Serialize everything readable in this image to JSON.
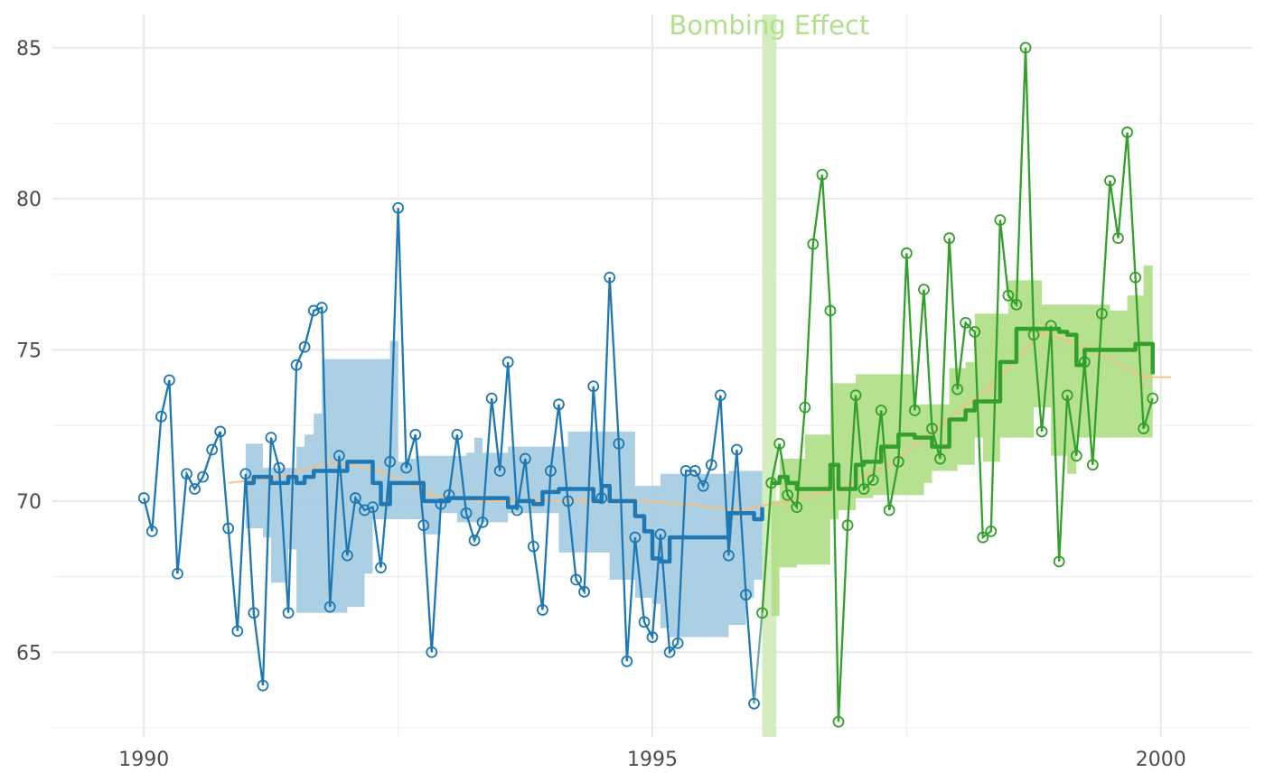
{
  "chart_data": {
    "type": "line",
    "title": "",
    "xlabel": "",
    "ylabel": "",
    "xlim": [
      1989.1,
      2000.9
    ],
    "ylim": [
      62.2,
      86.1
    ],
    "x_ticks": [
      1990,
      1995,
      2000
    ],
    "x_tick_labels": [
      "1990",
      "1995",
      "2000"
    ],
    "y_ticks": [
      65,
      70,
      75,
      80,
      85
    ],
    "y_tick_labels": [
      "65",
      "70",
      "75",
      "80",
      "85"
    ],
    "grid": true,
    "legend": "none",
    "colors": {
      "pre": "#1f78b4",
      "pre_band": "#a6cee3",
      "post": "#33a02c",
      "post_band": "#b2df8a",
      "trend": "#f1c087",
      "event": "#d4edbf",
      "annotation": "#b2df8a"
    },
    "event": {
      "x_start": 1996.08,
      "x_end": 1996.22,
      "label": "Bombing Effect"
    },
    "series": [
      {
        "x": [
          1990.0,
          1990.08,
          1990.17,
          1990.25,
          1990.33,
          1990.42,
          1990.5,
          1990.58,
          1990.67,
          1990.75,
          1990.83,
          1990.92,
          1991.0,
          1991.08,
          1991.17,
          1991.25,
          1991.33,
          1991.42,
          1991.5,
          1991.58,
          1991.67,
          1991.75,
          1991.83,
          1991.92,
          1992.0,
          1992.08,
          1992.17,
          1992.25,
          1992.33,
          1992.42,
          1992.5,
          1992.58,
          1992.67,
          1992.75,
          1992.83,
          1992.92,
          1993.0,
          1993.08,
          1993.17,
          1993.25,
          1993.33,
          1993.42,
          1993.5,
          1993.58,
          1993.67,
          1993.75,
          1993.83,
          1993.92,
          1994.0,
          1994.08,
          1994.17,
          1994.25,
          1994.33,
          1994.42,
          1994.5,
          1994.58,
          1994.67,
          1994.75,
          1994.83,
          1994.92,
          1995.0,
          1995.08,
          1995.17,
          1995.25,
          1995.33,
          1995.42,
          1995.5,
          1995.58,
          1995.67,
          1995.75,
          1995.83,
          1995.92,
          1996.0
        ],
        "values": [
          70.1,
          69.0,
          72.8,
          74.0,
          67.6,
          70.9,
          70.4,
          70.8,
          71.7,
          72.3,
          69.1,
          65.7,
          70.9,
          66.3,
          63.9,
          72.1,
          71.1,
          66.3,
          74.5,
          75.1,
          76.3,
          76.4,
          66.5,
          71.5,
          68.2,
          70.1,
          69.7,
          69.8,
          67.8,
          71.3,
          79.7,
          71.1,
          72.2,
          69.2,
          65.0,
          69.9,
          70.2,
          72.2,
          69.6,
          68.7,
          69.3,
          73.4,
          71.0,
          74.6,
          69.7,
          71.4,
          68.5,
          66.4,
          71.0,
          73.2,
          70.0,
          67.4,
          67.0,
          73.8,
          70.1,
          77.4,
          71.9,
          64.7,
          68.8,
          66.0,
          65.5,
          68.9,
          65.0,
          65.3,
          71.0,
          71.0,
          70.5,
          71.2,
          73.5,
          68.2,
          71.7,
          66.9,
          63.3
        ]
      },
      {
        "x": [
          1996.08,
          1996.17,
          1996.25,
          1996.33,
          1996.42,
          1996.5,
          1996.58,
          1996.67,
          1996.75,
          1996.83,
          1996.92,
          1997.0,
          1997.08,
          1997.17,
          1997.25,
          1997.33,
          1997.42,
          1997.5,
          1997.58,
          1997.67,
          1997.75,
          1997.83,
          1997.92,
          1998.0,
          1998.08,
          1998.17,
          1998.25,
          1998.33,
          1998.42,
          1998.5,
          1998.58,
          1998.67,
          1998.75,
          1998.83,
          1998.92,
          1999.0,
          1999.08,
          1999.17,
          1999.25,
          1999.33,
          1999.42,
          1999.5,
          1999.58,
          1999.67,
          1999.75,
          1999.83,
          1999.92,
          2000.0
        ],
        "values": [
          66.3,
          70.6,
          71.9,
          70.2,
          69.8,
          73.1,
          78.5,
          80.8,
          76.3,
          62.7,
          69.2,
          73.5,
          70.4,
          70.7,
          73.0,
          69.7,
          71.3,
          78.2,
          73.0,
          77.0,
          72.4,
          71.4,
          78.7,
          73.7,
          75.9,
          75.6,
          68.8,
          69.0,
          79.3,
          76.8,
          76.5,
          85.0,
          75.5,
          72.3,
          75.8,
          68.0,
          73.5,
          71.5,
          74.6,
          71.2,
          76.2,
          80.6,
          78.7,
          82.2,
          77.4,
          72.4,
          73.4,
          null
        ]
      },
      {
        "x": [
          1991.0,
          1991.08,
          1991.17,
          1991.25,
          1991.33,
          1991.42,
          1991.5,
          1991.58,
          1991.67,
          1991.75,
          1991.83,
          1991.92,
          1992.0,
          1992.08,
          1992.17,
          1992.25,
          1992.33,
          1992.42,
          1992.5,
          1992.58,
          1992.67,
          1992.75,
          1992.83,
          1992.92,
          1993.0,
          1993.08,
          1993.17,
          1993.25,
          1993.33,
          1993.42,
          1993.5,
          1993.58,
          1993.67,
          1993.75,
          1993.83,
          1993.92,
          1994.0,
          1994.08,
          1994.17,
          1994.25,
          1994.33,
          1994.42,
          1994.5,
          1994.58,
          1994.67,
          1994.75,
          1994.83,
          1994.92,
          1995.0,
          1995.08,
          1995.17,
          1995.25,
          1995.33,
          1995.42,
          1995.5,
          1995.58,
          1995.67,
          1995.75,
          1995.83,
          1995.92,
          1996.0,
          1996.08
        ],
        "values": [
          70.6,
          70.8,
          70.8,
          70.6,
          70.6,
          70.8,
          70.6,
          70.8,
          71.0,
          71.0,
          71.0,
          71.0,
          71.3,
          71.3,
          71.3,
          70.6,
          69.9,
          70.6,
          70.6,
          70.6,
          70.6,
          70.0,
          70.0,
          70.0,
          70.1,
          70.1,
          70.1,
          70.1,
          70.1,
          70.1,
          70.1,
          69.8,
          70.0,
          70.0,
          69.9,
          70.3,
          70.3,
          70.4,
          70.4,
          70.4,
          70.4,
          70.0,
          70.5,
          70.0,
          70.0,
          70.0,
          69.5,
          69.0,
          68.1,
          68.0,
          68.8,
          68.8,
          68.8,
          68.8,
          68.8,
          68.8,
          68.8,
          69.6,
          69.6,
          69.6,
          69.4,
          69.8
        ],
        "upper": [
          71.9,
          71.9,
          71.1,
          71.1,
          71.1,
          71.1,
          71.8,
          72.2,
          72.9,
          74.7,
          74.7,
          74.7,
          74.7,
          74.7,
          74.7,
          74.7,
          74.7,
          75.3,
          71.3,
          71.4,
          71.5,
          71.5,
          71.5,
          71.5,
          71.5,
          71.5,
          71.6,
          72.1,
          71.6,
          71.6,
          71.6,
          71.8,
          71.8,
          71.8,
          71.8,
          71.8,
          71.8,
          71.8,
          72.3,
          72.3,
          72.3,
          72.3,
          72.3,
          72.3,
          72.3,
          72.3,
          70.5,
          70.5,
          70.5,
          70.9,
          70.9,
          70.9,
          70.9,
          70.9,
          70.9,
          70.9,
          70.9,
          71.0,
          71.0,
          71.0,
          71.0,
          71.0
        ],
        "lower": [
          69.1,
          69.1,
          68.8,
          67.3,
          67.3,
          68.4,
          66.3,
          66.3,
          66.3,
          66.3,
          66.3,
          66.3,
          66.5,
          66.5,
          67.6,
          69.4,
          69.4,
          69.4,
          69.4,
          69.4,
          69.4,
          68.9,
          68.9,
          69.6,
          69.6,
          69.3,
          69.3,
          69.3,
          69.3,
          69.3,
          69.3,
          69.6,
          69.6,
          69.6,
          69.6,
          69.6,
          69.6,
          68.3,
          68.3,
          68.3,
          68.3,
          68.3,
          68.3,
          67.4,
          67.4,
          67.4,
          66.8,
          66.8,
          66.6,
          65.8,
          65.5,
          65.5,
          65.5,
          65.5,
          65.5,
          65.5,
          65.5,
          65.9,
          65.9,
          66.8,
          67.4,
          67.4
        ]
      },
      {
        "x": [
          1996.17,
          1996.25,
          1996.33,
          1996.42,
          1996.5,
          1996.58,
          1996.67,
          1996.75,
          1996.83,
          1996.92,
          1997.0,
          1997.08,
          1997.17,
          1997.25,
          1997.33,
          1997.42,
          1997.5,
          1997.58,
          1997.67,
          1997.75,
          1997.83,
          1997.92,
          1998.0,
          1998.08,
          1998.17,
          1998.25,
          1998.33,
          1998.42,
          1998.5,
          1998.58,
          1998.67,
          1998.75,
          1998.83,
          1998.92,
          1999.0,
          1999.08,
          1999.17,
          1999.25,
          1999.33,
          1999.42,
          1999.5,
          1999.58,
          1999.67,
          1999.75,
          1999.83,
          1999.92,
          2000.0
        ],
        "values": [
          70.6,
          70.8,
          70.6,
          70.4,
          70.4,
          70.4,
          70.4,
          71.2,
          70.4,
          70.4,
          71.2,
          71.3,
          71.3,
          71.8,
          71.8,
          72.2,
          72.2,
          72.1,
          72.1,
          71.8,
          71.8,
          72.7,
          72.7,
          73.0,
          73.3,
          73.3,
          73.3,
          74.6,
          74.6,
          75.7,
          75.7,
          75.7,
          75.7,
          75.7,
          75.6,
          75.5,
          74.5,
          75.0,
          75.0,
          75.0,
          75.0,
          75.0,
          75.0,
          75.2,
          75.2,
          74.2,
          null
        ],
        "upper": [
          70.0,
          71.4,
          71.4,
          71.4,
          72.2,
          72.2,
          72.2,
          73.9,
          73.9,
          73.9,
          74.2,
          74.2,
          74.2,
          74.2,
          74.2,
          74.2,
          74.2,
          73.2,
          73.2,
          73.2,
          73.2,
          74.4,
          74.4,
          74.6,
          76.2,
          76.2,
          76.2,
          76.2,
          77.3,
          77.3,
          77.3,
          77.3,
          76.5,
          76.5,
          76.5,
          76.5,
          76.5,
          76.5,
          76.5,
          76.5,
          76.3,
          76.3,
          76.8,
          76.8,
          77.8,
          77.8,
          null
        ],
        "lower": [
          66.2,
          67.8,
          67.8,
          67.9,
          67.9,
          67.9,
          67.9,
          69.4,
          69.7,
          69.7,
          70.1,
          70.1,
          70.2,
          70.2,
          70.2,
          70.2,
          70.2,
          70.2,
          70.6,
          71.0,
          71.0,
          71.0,
          71.2,
          71.2,
          72.1,
          71.3,
          71.3,
          72.1,
          72.1,
          72.1,
          72.1,
          73.1,
          73.1,
          71.5,
          71.5,
          70.9,
          72.1,
          72.1,
          72.1,
          72.1,
          72.1,
          72.1,
          72.1,
          72.1,
          72.1,
          72.1,
          null
        ]
      },
      {
        "x": [
          1990.83,
          1991.33,
          1991.83,
          1992.33,
          1992.83,
          1993.33,
          1993.83,
          1994.33,
          1994.83,
          1995.33,
          1995.83,
          1996.33,
          1996.83,
          1997.33,
          1997.83,
          1998.33,
          1998.83,
          1999.33,
          1999.83,
          2000.1
        ],
        "values": [
          70.6,
          70.8,
          71.3,
          71.0,
          70.2,
          70.0,
          70.0,
          70.0,
          70.0,
          69.9,
          69.7,
          70.0,
          70.4,
          71.2,
          72.5,
          73.8,
          75.6,
          75.0,
          74.1,
          74.1
        ]
      }
    ]
  }
}
